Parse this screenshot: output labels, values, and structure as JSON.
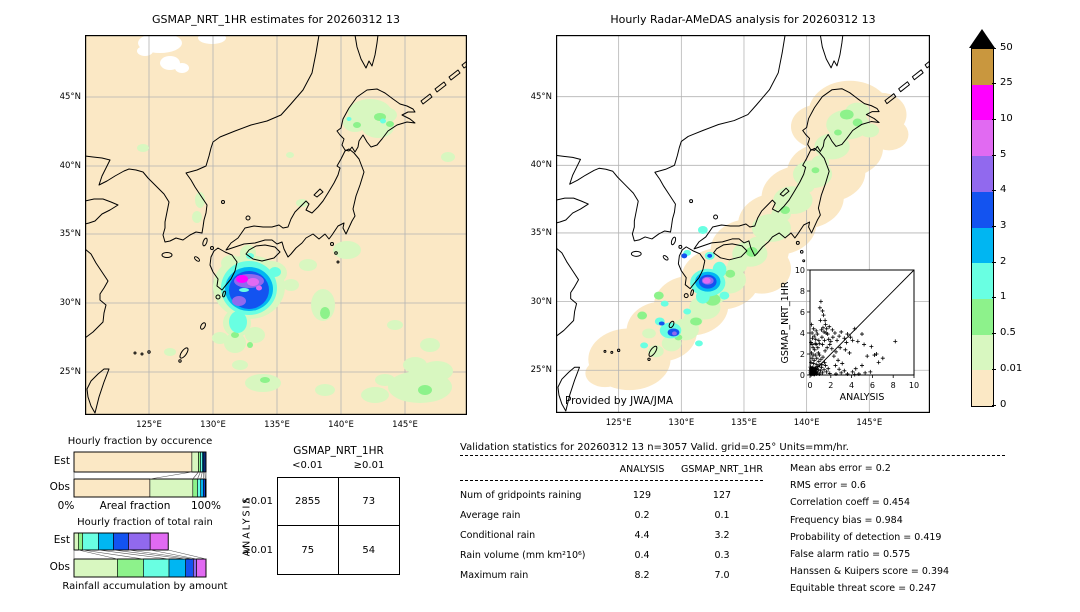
{
  "left_map": {
    "title": "GSMAP_NRT_1HR estimates for 20260312 13",
    "x_ticks": [
      "125°E",
      "130°E",
      "135°E",
      "140°E",
      "145°E"
    ],
    "y_ticks": [
      "45°N",
      "40°N",
      "35°N",
      "30°N",
      "25°N"
    ]
  },
  "right_map": {
    "title": "Hourly Radar-AMeDAS analysis for 20260312 13",
    "x_ticks": [
      "125°E",
      "130°E",
      "135°E",
      "140°E",
      "145°E"
    ],
    "y_ticks": [
      "45°N",
      "40°N",
      "35°N",
      "30°N",
      "25°N"
    ],
    "credit": "Provided by JWA/JMA"
  },
  "colorbar": {
    "tick_labels": [
      "50",
      "25",
      "10",
      "5",
      "4",
      "3",
      "2",
      "1",
      "0.5",
      "0.01",
      "0"
    ],
    "segment_colors_top_to_bottom": [
      "#c9973e",
      "#ff00ff",
      "#e16af2",
      "#9169ee",
      "#1353f0",
      "#00b6f2",
      "#69ffe2",
      "#8df28b",
      "#d8f7c0",
      "#fbe8c5"
    ],
    "overflow_triangle_color": "#000000"
  },
  "occurrence_chart": {
    "title": "Hourly fraction by occurence",
    "row_labels": [
      "Est",
      "Obs"
    ],
    "x_min_label": "0%",
    "x_axis_label": "Areal fraction",
    "x_max_label": "100%"
  },
  "totalrain_chart": {
    "title": "Hourly fraction of total rain",
    "row_labels": [
      "Est",
      "Obs"
    ],
    "caption": "Rainfall accumulation by amount"
  },
  "contingency_table": {
    "col_group_label": "GSMAP_NRT_1HR",
    "col_labels": [
      "<0.01",
      "≥0.01"
    ],
    "row_group_label": "ANALYSIS",
    "row_labels": [
      "<0.01",
      "≥0.01"
    ],
    "values": [
      [
        "2855",
        "73"
      ],
      [
        "75",
        "54"
      ]
    ]
  },
  "validation": {
    "header": "Validation statistics for 20260312 13  n=3057 Valid. grid=0.25° Units=mm/hr.",
    "columns": [
      "ANALYSIS",
      "GSMAP_NRT_1HR"
    ],
    "rows": [
      {
        "label": "Num of gridpoints raining",
        "values": [
          "129",
          "127"
        ]
      },
      {
        "label": "Average rain",
        "values": [
          "0.2",
          "0.1"
        ]
      },
      {
        "label": "Conditional rain",
        "values": [
          "4.4",
          "3.2"
        ]
      },
      {
        "label": "Rain volume (mm km²10⁶)",
        "values": [
          "0.4",
          "0.3"
        ]
      },
      {
        "label": "Maximum rain",
        "values": [
          "8.2",
          "7.0"
        ]
      }
    ],
    "scores": [
      {
        "label": "Mean abs error",
        "value": "0.2"
      },
      {
        "label": "RMS error",
        "value": "0.6"
      },
      {
        "label": "Correlation coeff",
        "value": "0.454"
      },
      {
        "label": "Frequency bias",
        "value": "0.984"
      },
      {
        "label": "Probability of detection",
        "value": "0.419"
      },
      {
        "label": "False alarm ratio",
        "value": "0.575"
      },
      {
        "label": "Hanssen & Kuipers score",
        "value": "0.394"
      },
      {
        "label": "Equitable threat score",
        "value": "0.247"
      }
    ]
  },
  "chart_data": [
    {
      "id": "occurrence_fraction",
      "type": "bar",
      "title": "Hourly fraction by occurence",
      "xlabel": "Areal fraction",
      "xlim": [
        0,
        100
      ],
      "unit": "%",
      "bins": [
        "0-0.01",
        "0.01-0.5",
        "0.5-1",
        "1-2",
        "2-3",
        "3-4",
        ">4"
      ],
      "bin_colors": [
        "#fbe8c5",
        "#d8f7c0",
        "#8df28b",
        "#69ffe2",
        "#00b6f2",
        "#1353f0",
        "#10309e"
      ],
      "series": [
        {
          "name": "Est",
          "values": [
            89.3,
            5.0,
            1.5,
            1.4,
            0.9,
            1.0,
            0.9
          ]
        },
        {
          "name": "Obs",
          "values": [
            57.5,
            32.5,
            3.5,
            2.5,
            2.0,
            1.4,
            0.6
          ]
        }
      ]
    },
    {
      "id": "totalrain_fraction",
      "type": "bar",
      "title": "Hourly fraction of total rain",
      "xlabel": "Rainfall accumulation by amount",
      "xlim": [
        0,
        100
      ],
      "unit": "%",
      "bins": [
        "0.01-0.5",
        "0.5-1",
        "1-2",
        "2-3",
        "3-4",
        "4-5",
        ">5"
      ],
      "bin_colors": [
        "#d8f7c0",
        "#8df28b",
        "#69ffe2",
        "#00b6f2",
        "#1353f0",
        "#9169ee",
        "#e16af2"
      ],
      "series": [
        {
          "name": "Est",
          "values": [
            3.3,
            3.3,
            11.9,
            11.4,
            11.4,
            16.4,
            13.7
          ]
        },
        {
          "name": "Obs",
          "values": [
            32.9,
            19.7,
            19.4,
            12.6,
            5.8,
            2.5,
            7.1
          ]
        }
      ]
    },
    {
      "id": "inset_scatter",
      "type": "scatter",
      "xlabel": "ANALYSIS",
      "ylabel": "GSMAP_NRT_1HR",
      "xlim": [
        0,
        10
      ],
      "ylim": [
        0,
        10
      ],
      "ticks": [
        0,
        2,
        4,
        6,
        8,
        10
      ],
      "identity_line": true,
      "points": [
        [
          0.05,
          0.05
        ],
        [
          0.1,
          0.15
        ],
        [
          0.15,
          0.05
        ],
        [
          0.2,
          0.1
        ],
        [
          0.25,
          0.2
        ],
        [
          0.1,
          0.3
        ],
        [
          0.3,
          0.1
        ],
        [
          0.35,
          0.25
        ],
        [
          0.05,
          0.4
        ],
        [
          0.4,
          0.05
        ],
        [
          0.45,
          0.3
        ],
        [
          0.2,
          0.5
        ],
        [
          0.5,
          0.15
        ],
        [
          0.3,
          0.45
        ],
        [
          0.55,
          0.4
        ],
        [
          0.1,
          0.6
        ],
        [
          0.6,
          0.1
        ],
        [
          0.4,
          0.6
        ],
        [
          0.25,
          0.7
        ],
        [
          0.6,
          0.55
        ],
        [
          0.05,
          0.75
        ],
        [
          0.5,
          0.7
        ],
        [
          0.35,
          0.3
        ],
        [
          0.15,
          0.45
        ],
        [
          0.45,
          0.5
        ],
        [
          0.3,
          0.65
        ],
        [
          0.55,
          0.25
        ],
        [
          0.2,
          0.25
        ],
        [
          0.4,
          0.4
        ],
        [
          0.1,
          0.5
        ],
        [
          0.05,
          0.2
        ],
        [
          0.25,
          0.35
        ],
        [
          0.5,
          0.5
        ],
        [
          0.6,
          0.3
        ],
        [
          0.35,
          0.15
        ],
        [
          0.15,
          0.65
        ],
        [
          0.45,
          0.1
        ],
        [
          0.3,
          0.25
        ],
        [
          0.2,
          0.6
        ],
        [
          0.55,
          0.6
        ],
        [
          0.7,
          0.2
        ],
        [
          0.8,
          0.5
        ],
        [
          0.9,
          0.1
        ],
        [
          1.0,
          0.4
        ],
        [
          1.1,
          0.7
        ],
        [
          1.2,
          0.2
        ],
        [
          1.35,
          0.5
        ],
        [
          1.5,
          0.9
        ],
        [
          1.6,
          0.3
        ],
        [
          1.75,
          0.6
        ],
        [
          1.9,
          0.15
        ],
        [
          0.75,
          0.8
        ],
        [
          0.95,
          0.95
        ],
        [
          1.15,
          1.0
        ],
        [
          1.4,
          1.2
        ],
        [
          0.85,
          1.3
        ],
        [
          0.65,
          1.0
        ],
        [
          1.05,
          1.5
        ],
        [
          1.25,
          1.7
        ],
        [
          0.9,
          1.9
        ],
        [
          0.1,
          1.2
        ],
        [
          0.2,
          1.6
        ],
        [
          0.15,
          2.1
        ],
        [
          0.3,
          2.6
        ],
        [
          0.1,
          3.1
        ],
        [
          0.25,
          3.5
        ],
        [
          0.2,
          4.0
        ],
        [
          0.35,
          4.4
        ],
        [
          0.15,
          4.8
        ],
        [
          0.4,
          1.4
        ],
        [
          0.5,
          1.9
        ],
        [
          0.45,
          2.4
        ],
        [
          0.6,
          2.9
        ],
        [
          0.55,
          3.4
        ],
        [
          0.7,
          3.9
        ],
        [
          0.65,
          1.6
        ],
        [
          0.8,
          2.1
        ],
        [
          0.75,
          2.6
        ],
        [
          0.9,
          3.0
        ],
        [
          0.85,
          3.3
        ],
        [
          0.3,
          1.9
        ],
        [
          0.5,
          3.0
        ],
        [
          0.6,
          4.2
        ],
        [
          0.4,
          3.7
        ],
        [
          0.2,
          2.9
        ],
        [
          0.35,
          1.1
        ],
        [
          1.0,
          5.2
        ],
        [
          0.95,
          6.4
        ],
        [
          1.05,
          7.0
        ],
        [
          1.2,
          6.1
        ],
        [
          1.3,
          5.7
        ],
        [
          1.45,
          5.2
        ],
        [
          1.5,
          4.8
        ],
        [
          1.25,
          4.5
        ],
        [
          1.6,
          4.4
        ],
        [
          1.35,
          4.1
        ],
        [
          1.7,
          3.9
        ],
        [
          1.15,
          3.6
        ],
        [
          1.8,
          3.4
        ],
        [
          1.1,
          4.3
        ],
        [
          1.55,
          4.0
        ],
        [
          1.4,
          3.3
        ],
        [
          1.2,
          2.9
        ],
        [
          1.65,
          2.6
        ],
        [
          1.45,
          2.3
        ],
        [
          1.9,
          2.9
        ],
        [
          2.0,
          3.2
        ],
        [
          1.85,
          4.6
        ],
        [
          2.2,
          3.6
        ],
        [
          2.4,
          4.0
        ],
        [
          2.6,
          3.3
        ],
        [
          2.8,
          3.7
        ],
        [
          3.0,
          4.1
        ],
        [
          3.3,
          3.5
        ],
        [
          3.6,
          3.9
        ],
        [
          2.1,
          2.5
        ],
        [
          2.5,
          2.2
        ],
        [
          2.9,
          2.6
        ],
        [
          3.4,
          2.4
        ],
        [
          3.8,
          2.1
        ],
        [
          2.3,
          1.8
        ],
        [
          2.7,
          1.4
        ],
        [
          3.1,
          1.1
        ],
        [
          3.5,
          3.1
        ],
        [
          3.9,
          3.6
        ],
        [
          2.15,
          4.3
        ],
        [
          4.1,
          3.3
        ],
        [
          2.45,
          0.9
        ],
        [
          2.5,
          0.1
        ],
        [
          3.0,
          0.2
        ],
        [
          3.6,
          0.1
        ],
        [
          4.1,
          0.3
        ],
        [
          4.7,
          0.1
        ],
        [
          5.3,
          0.2
        ],
        [
          2.8,
          0.55
        ],
        [
          3.3,
          0.4
        ],
        [
          4.4,
          0.6
        ],
        [
          5.8,
          0.3
        ],
        [
          5.0,
          0.9
        ],
        [
          4.3,
          0.05
        ],
        [
          4.3,
          4.4
        ],
        [
          4.6,
          3.2
        ],
        [
          5.0,
          3.9
        ],
        [
          5.2,
          2.9
        ],
        [
          5.5,
          1.8
        ],
        [
          6.2,
          1.9
        ],
        [
          6.6,
          1.2
        ],
        [
          7.0,
          1.6
        ],
        [
          8.2,
          3.2
        ],
        [
          5.9,
          2.7
        ],
        [
          6.4,
          2.0
        ]
      ]
    }
  ]
}
